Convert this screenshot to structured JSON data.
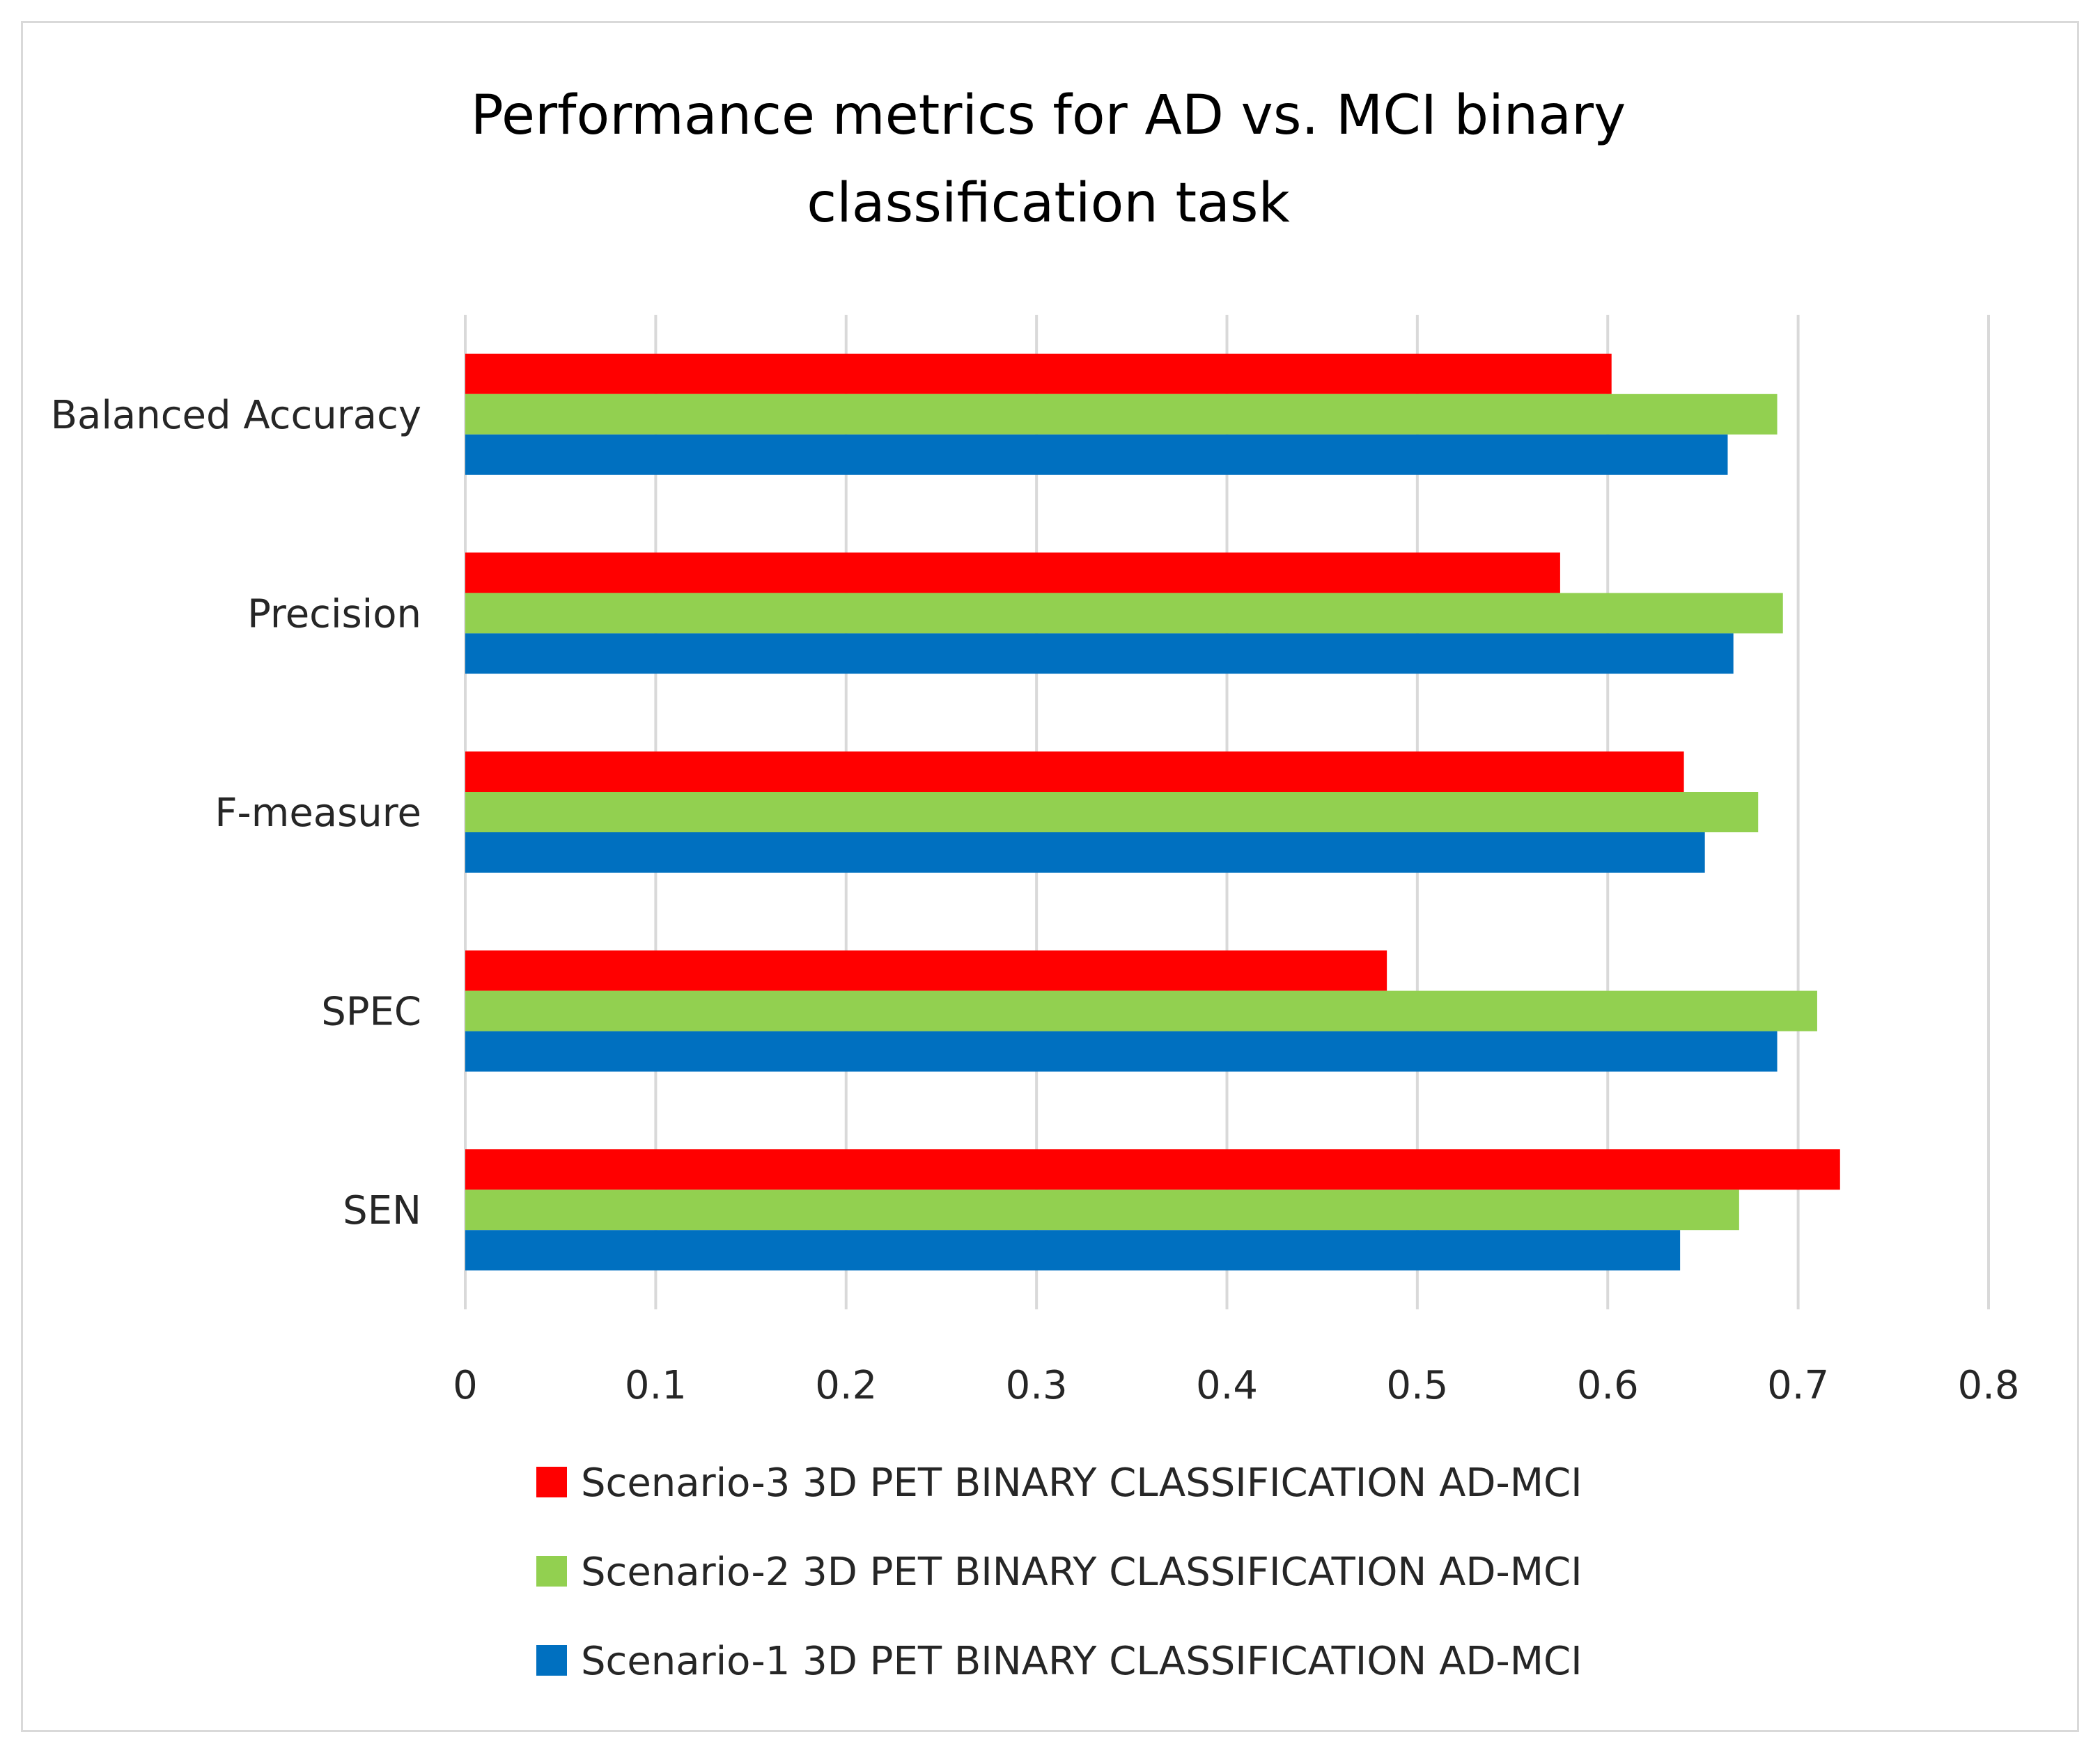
{
  "chart_data": {
    "type": "bar",
    "orientation": "horizontal",
    "title": "Performance  metrics for AD vs. MCI binary classification task",
    "title_lines": [
      "Performance  metrics for AD vs. MCI binary",
      "classification task"
    ],
    "xlabel": "",
    "ylabel": "",
    "xlim": [
      0,
      0.8
    ],
    "x_ticks": [
      0,
      0.1,
      0.2,
      0.3,
      0.4,
      0.5,
      0.6,
      0.7,
      0.8
    ],
    "x_tick_labels": [
      "0",
      "0.1",
      "0.2",
      "0.3",
      "0.4",
      "0.5",
      "0.6",
      "0.7",
      "0.8"
    ],
    "grid": true,
    "legend_position": "bottom",
    "categories": [
      "Balanced Accuracy",
      "Precision",
      "F-measure",
      "SPEC",
      "SEN"
    ],
    "series": [
      {
        "name": "Scenario-3 3D PET BINARY CLASSIFICATION AD-MCI",
        "color": "#ff0000",
        "values": [
          0.602,
          0.575,
          0.64,
          0.484,
          0.722
        ]
      },
      {
        "name": "Scenario-2 3D PET BINARY CLASSIFICATION AD-MCI",
        "color": "#92d050",
        "values": [
          0.689,
          0.692,
          0.679,
          0.71,
          0.669
        ]
      },
      {
        "name": "Scenario-1 3D PET BINARY CLASSIFICATION AD-MCI",
        "color": "#0070c0",
        "values": [
          0.663,
          0.666,
          0.651,
          0.689,
          0.638
        ]
      }
    ],
    "grid_color": "#d9d9d9",
    "text_color": "#000000",
    "label_color": "#262626"
  }
}
